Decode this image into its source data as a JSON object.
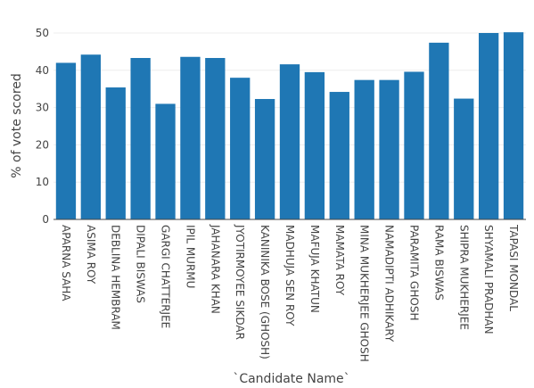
{
  "chart_data": {
    "type": "bar",
    "xlabel": "`Candidate Name`",
    "ylabel": "% of vote scored",
    "ylim": [
      0,
      50
    ],
    "yticks": [
      0,
      10,
      20,
      30,
      40,
      50
    ],
    "grid": true,
    "bar_color": "#1f77b4",
    "categories": [
      "APARNA SAHA",
      "ASIMA ROY",
      "DEBLINA HEMBRAM",
      "DIPALI BISWAS",
      "GARGI CHATTERJEE",
      "IPIL MURMU",
      "JAHANARA KHAN",
      "JYOTIRMOYEE SIKDAR",
      "KANINIKA BOSE (GHOSH)",
      "MADHUJA SEN ROY",
      "MAFUJA KHATUN",
      "MAMATA ROY",
      "MINA MUKHERJEE GHOSH",
      "NAMADIPTI ADHIKARY",
      "PARAMITA GHOSH",
      "RAMA BISWAS",
      "SHIPRA MUKHERJEE",
      "SHYAMALI PRADHAN",
      "TAPASI MONDAL"
    ],
    "values": [
      42.0,
      44.2,
      35.4,
      43.3,
      31.0,
      43.6,
      43.3,
      38.0,
      32.3,
      41.6,
      39.5,
      34.2,
      37.4,
      37.4,
      39.6,
      47.4,
      32.4,
      50.0,
      50.2
    ]
  }
}
